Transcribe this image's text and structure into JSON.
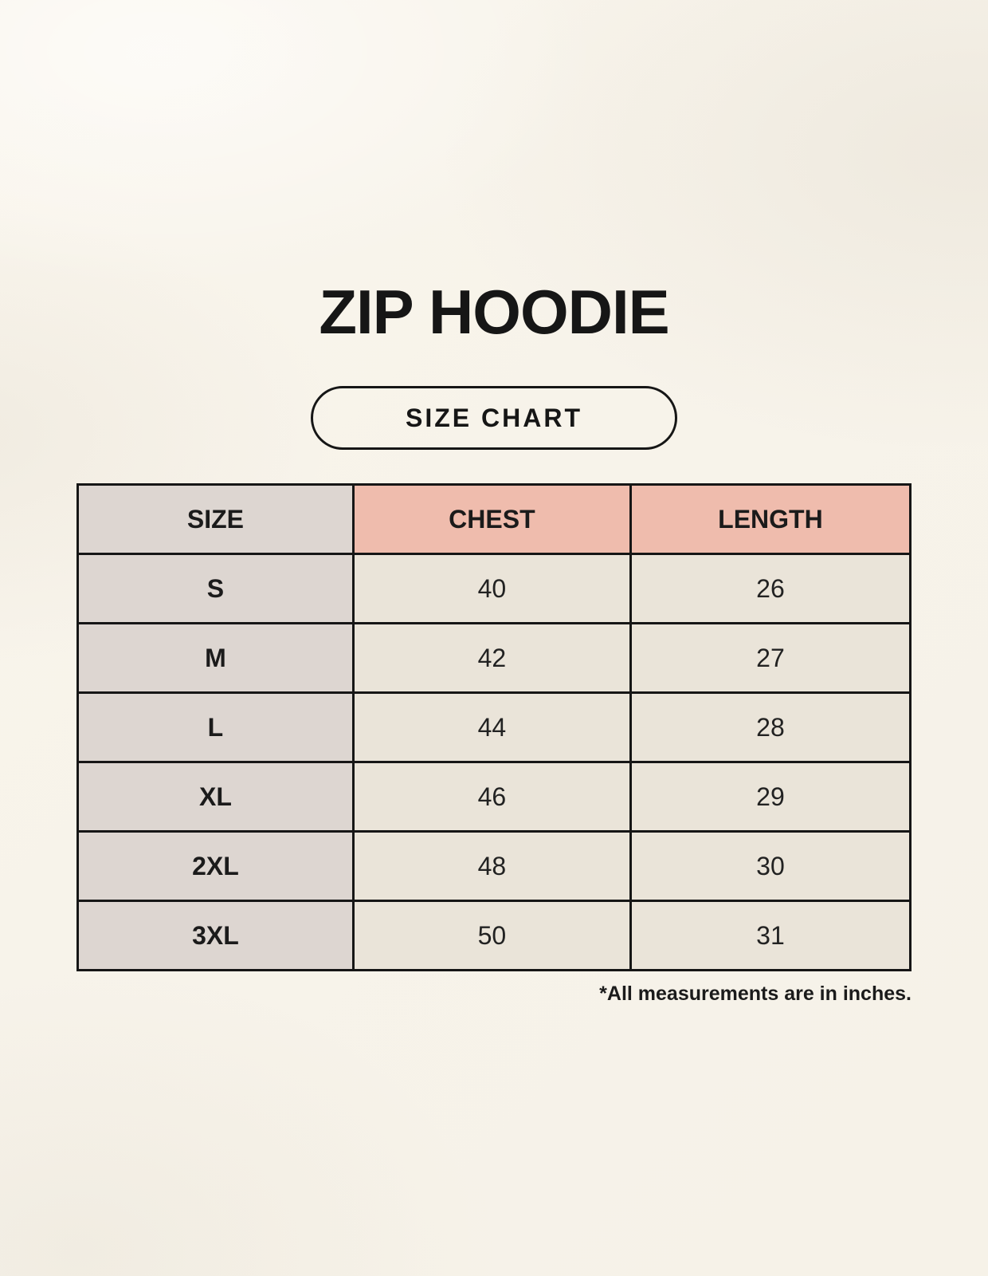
{
  "page": {
    "title": "ZIP HOODIE",
    "badge_label": "SIZE CHART",
    "footnote": "*All measurements are in inches."
  },
  "colors": {
    "background": "#F7F3EA",
    "size_column_bg": "#DDD6D1",
    "measure_header_bg": "#EFBCAD",
    "data_cell_bg": "#EAE4D9",
    "border": "#161616",
    "text": "#1B1B1B"
  },
  "chart_data": {
    "type": "table",
    "title": "ZIP HOODIE",
    "subtitle": "SIZE CHART",
    "columns": [
      "SIZE",
      "CHEST",
      "LENGTH"
    ],
    "rows": [
      [
        "S",
        "40",
        "26"
      ],
      [
        "M",
        "42",
        "27"
      ],
      [
        "L",
        "44",
        "28"
      ],
      [
        "XL",
        "46",
        "29"
      ],
      [
        "2XL",
        "48",
        "30"
      ],
      [
        "3XL",
        "50",
        "31"
      ]
    ],
    "units_note": "*All measurements are in inches.",
    "units": "inches"
  }
}
